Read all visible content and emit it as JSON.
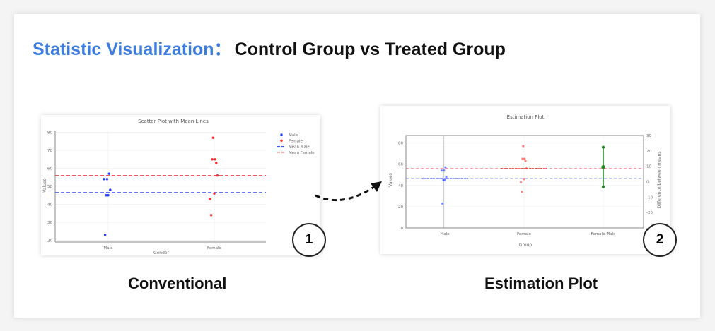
{
  "header": {
    "title_accent": "Statistic Visualization：",
    "title_main": "Control Group vs Treated Group"
  },
  "captions": {
    "left": "Conventional",
    "right": "Estimation Plot"
  },
  "badges": {
    "left": "1",
    "right": "2"
  },
  "colors": {
    "accent": "#3d7de0",
    "male": "#1f3cff",
    "female": "#ff2a2a",
    "diff": "#1a8a1a"
  },
  "chart_data": [
    {
      "type": "scatter",
      "title": "Scatter Plot with Mean Lines",
      "xlabel": "Gender",
      "ylabel": "Values",
      "categories": [
        "Male",
        "Female"
      ],
      "ylim": [
        19,
        81
      ],
      "yticks": [
        20,
        30,
        40,
        50,
        60,
        70,
        80
      ],
      "grid": true,
      "legend": "top-right",
      "legend_entries": [
        "Male",
        "Female",
        "Mean Male",
        "Mean Female"
      ],
      "series": [
        {
          "name": "Male",
          "values": [
            54,
            23,
            45,
            54,
            45,
            57,
            48
          ]
        },
        {
          "name": "Female",
          "values": [
            43,
            34,
            65,
            77,
            46,
            65,
            63,
            56
          ]
        }
      ],
      "means": [
        {
          "name": "Mean Male",
          "value": 46.6
        },
        {
          "name": "Mean Female",
          "value": 56.1
        }
      ]
    },
    {
      "type": "scatter",
      "title": "Estimation Plot",
      "xlabel": "Group",
      "ylabel": "Values",
      "y2label": "Difference between means",
      "categories": [
        "Male",
        "Female",
        "Female-Male"
      ],
      "ylim": [
        0,
        87
      ],
      "yticks": [
        0,
        20,
        40,
        60,
        80
      ],
      "y2lim": [
        -30,
        30
      ],
      "y2ticks": [
        -30,
        -20,
        -10,
        0,
        10,
        20,
        30
      ],
      "grid": true,
      "series": [
        {
          "name": "Male",
          "values": [
            54,
            23,
            45,
            54,
            45,
            57,
            48
          ]
        },
        {
          "name": "Female",
          "values": [
            43,
            34,
            65,
            77,
            46,
            65,
            63,
            56
          ]
        }
      ],
      "means": [
        46.6,
        56.1
      ],
      "difference": {
        "mean": 9.5,
        "ci_low": -3.4,
        "ci_high": 22.4
      }
    }
  ]
}
